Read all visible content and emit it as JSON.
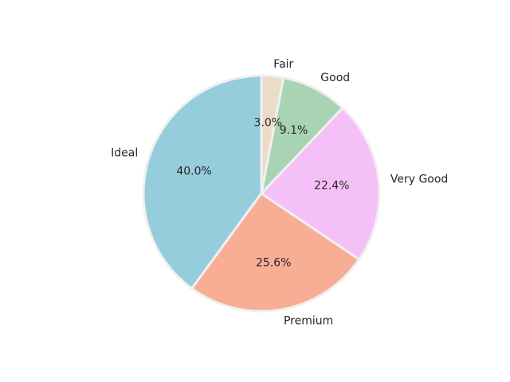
{
  "chart_data": {
    "type": "pie",
    "categories": [
      "Ideal",
      "Premium",
      "Very Good",
      "Good",
      "Fair"
    ],
    "values": [
      40.0,
      25.6,
      22.4,
      9.1,
      3.0
    ],
    "value_labels": [
      "40.0%",
      "25.6%",
      "22.4%",
      "9.1%",
      "3.0%"
    ],
    "colors": [
      "#96cddc",
      "#f7ae94",
      "#f5bff7",
      "#a9d4b4",
      "#ebdcc8"
    ],
    "edge_color": "#f0f0f0",
    "start_angle_deg": 90,
    "direction": "counterclockwise",
    "title": ""
  }
}
